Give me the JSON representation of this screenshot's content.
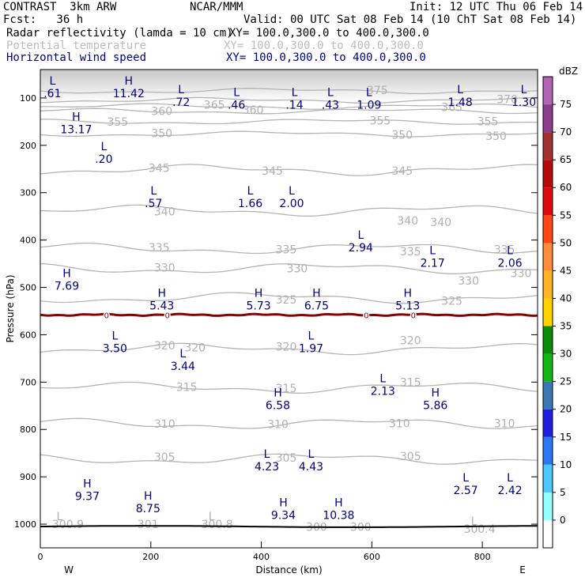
{
  "header": {
    "title": "CONTRAST  3km ARW",
    "center": "NCAR/MMM",
    "init": "Init: 12 UTC Thu 06 Feb 14",
    "fcst": "Fcst:   36 h",
    "valid": "Valid: 00 UTC Sat 08 Feb 14 (10 ChT Sat 08 Feb 14)",
    "field1": "Radar reflectivity (lamda = 10 cm)",
    "field1_xy": "XY= 100.0,300.0 to 400.0,300.0",
    "field2": "Potential temperature",
    "field2_xy": "XY= 100.0,300.0 to 400.0,300.0",
    "field3": "Horizontal wind speed",
    "field3_xy": "XY= 100.0,300.0 to 400.0,300.0"
  },
  "chart_data": {
    "type": "cross-section",
    "xlabel": "Distance (km)",
    "ylabel": "Pressure (hPa)",
    "xlim": [
      0,
      900
    ],
    "ylim": [
      1050,
      40
    ],
    "x_ticks": [
      0,
      200,
      400,
      600,
      800
    ],
    "y_ticks": [
      100,
      200,
      300,
      400,
      500,
      600,
      700,
      800,
      900,
      1000
    ],
    "left_end_label": "W",
    "right_end_label": "E",
    "colorbar": {
      "unit": "dBZ",
      "levels": [
        0,
        5,
        10,
        15,
        20,
        25,
        30,
        35,
        40,
        45,
        50,
        55,
        60,
        65,
        70,
        75
      ],
      "colors": [
        "#96ffff",
        "#4ec8fc",
        "#2a78f0",
        "#1e1edc",
        "#3c78b4",
        "#14b414",
        "#0a8c0a",
        "#ffd200",
        "#ffb428",
        "#ff8c3c",
        "#ff4614",
        "#dc0a0a",
        "#b40a0a",
        "#a03232",
        "#8c3c8c",
        "#b464b4"
      ]
    },
    "theta_contours": [
      {
        "value": 375,
        "p": 85,
        "labels": [
          {
            "text": "375",
            "x": 610,
            "p": 83
          }
        ]
      },
      {
        "value": 370,
        "p": 105,
        "labels": [
          {
            "text": "370",
            "x": 845,
            "p": 103
          }
        ]
      },
      {
        "value": 365,
        "p": 118,
        "labels": [
          {
            "text": "365",
            "x": 315,
            "p": 114
          },
          {
            "text": "365",
            "x": 745,
            "p": 119
          }
        ]
      },
      {
        "value": 360,
        "p": 128,
        "labels": [
          {
            "text": "360",
            "x": 220,
            "p": 128
          },
          {
            "text": "360",
            "x": 385,
            "p": 125
          }
        ]
      },
      {
        "value": 355,
        "p": 150,
        "labels": [
          {
            "text": "355",
            "x": 140,
            "p": 150
          },
          {
            "text": "355",
            "x": 615,
            "p": 148
          },
          {
            "text": "355",
            "x": 810,
            "p": 149
          }
        ]
      },
      {
        "value": 350,
        "p": 176,
        "labels": [
          {
            "text": "350",
            "x": 220,
            "p": 174
          },
          {
            "text": "350",
            "x": 655,
            "p": 178
          },
          {
            "text": "350",
            "x": 825,
            "p": 180
          }
        ]
      },
      {
        "value": 345,
        "p": 252,
        "labels": [
          {
            "text": "345",
            "x": 215,
            "p": 248
          },
          {
            "text": "345",
            "x": 420,
            "p": 254
          },
          {
            "text": "345",
            "x": 655,
            "p": 254
          }
        ]
      },
      {
        "value": 340,
        "p": 338,
        "labels": [
          {
            "text": "340",
            "x": 225,
            "p": 340
          },
          {
            "text": "340",
            "x": 665,
            "p": 359
          },
          {
            "text": "340",
            "x": 725,
            "p": 362
          }
        ]
      },
      {
        "value": 335,
        "p": 418,
        "labels": [
          {
            "text": "335",
            "x": 215,
            "p": 416
          },
          {
            "text": "335",
            "x": 445,
            "p": 420
          },
          {
            "text": "335",
            "x": 670,
            "p": 424
          },
          {
            "text": "335",
            "x": 840,
            "p": 420
          }
        ]
      },
      {
        "value": 330,
        "p": 460,
        "labels": [
          {
            "text": "330",
            "x": 225,
            "p": 458
          },
          {
            "text": "330",
            "x": 465,
            "p": 460
          },
          {
            "text": "330",
            "x": 775,
            "p": 486
          },
          {
            "text": "330",
            "x": 870,
            "p": 470
          }
        ]
      },
      {
        "value": 325,
        "p": 522,
        "labels": [
          {
            "text": "325",
            "x": 445,
            "p": 526
          },
          {
            "text": "325",
            "x": 745,
            "p": 528
          }
        ]
      },
      {
        "value": 320,
        "p": 630,
        "labels": [
          {
            "text": "320",
            "x": 225,
            "p": 623
          },
          {
            "text": "320",
            "x": 280,
            "p": 627
          },
          {
            "text": "320",
            "x": 445,
            "p": 625
          },
          {
            "text": "320",
            "x": 670,
            "p": 612
          }
        ]
      },
      {
        "value": 315,
        "p": 712,
        "labels": [
          {
            "text": "315",
            "x": 265,
            "p": 710
          },
          {
            "text": "315",
            "x": 445,
            "p": 713
          },
          {
            "text": "315",
            "x": 670,
            "p": 700
          }
        ]
      },
      {
        "value": 310,
        "p": 788,
        "labels": [
          {
            "text": "310",
            "x": 225,
            "p": 788
          },
          {
            "text": "310",
            "x": 430,
            "p": 789
          },
          {
            "text": "310",
            "x": 650,
            "p": 787
          },
          {
            "text": "310",
            "x": 840,
            "p": 787
          }
        ]
      },
      {
        "value": 305,
        "p": 862,
        "labels": [
          {
            "text": "305",
            "x": 225,
            "p": 858
          },
          {
            "text": "305",
            "x": 445,
            "p": 860
          },
          {
            "text": "305",
            "x": 670,
            "p": 856
          }
        ]
      }
    ],
    "surface_theta_labels": [
      {
        "text": "L",
        "x": 35,
        "p": 983
      },
      {
        "text": "300.9",
        "x": 50,
        "p": 1000
      },
      {
        "text": "301",
        "x": 195,
        "p": 1000
      },
      {
        "text": "L",
        "x": 310,
        "p": 983
      },
      {
        "text": "300.8",
        "x": 320,
        "p": 1000
      },
      {
        "text": "300",
        "x": 500,
        "p": 1006
      },
      {
        "text": "300",
        "x": 580,
        "p": 1006
      },
      {
        "text": "L",
        "x": 785,
        "p": 993
      },
      {
        "text": "300.4",
        "x": 795,
        "p": 1010
      }
    ],
    "zero_isotherm": {
      "p": 558,
      "label": "0",
      "label_x": [
        120,
        230,
        590,
        675
      ]
    },
    "surface_p": 1005,
    "wind_extrema": [
      {
        "type": "L",
        "value": ".61",
        "x": 22,
        "p": 72
      },
      {
        "type": "H",
        "value": "11.42",
        "x": 160,
        "p": 72
      },
      {
        "type": "L",
        "value": ".72",
        "x": 255,
        "p": 90
      },
      {
        "type": "L",
        "value": ".46",
        "x": 355,
        "p": 96
      },
      {
        "type": "L",
        "value": ".14",
        "x": 460,
        "p": 96
      },
      {
        "type": "L",
        "value": ".43",
        "x": 525,
        "p": 96
      },
      {
        "type": "L",
        "value": "1.09",
        "x": 595,
        "p": 96
      },
      {
        "type": "L",
        "value": "1.48",
        "x": 760,
        "p": 90
      },
      {
        "type": "L",
        "value": "1.30",
        "x": 875,
        "p": 90
      },
      {
        "type": "H",
        "value": "13.17",
        "x": 65,
        "p": 148
      },
      {
        "type": "L",
        "value": ".20",
        "x": 115,
        "p": 210
      },
      {
        "type": "L",
        "value": ".57",
        "x": 205,
        "p": 304
      },
      {
        "type": "L",
        "value": "1.66",
        "x": 380,
        "p": 304
      },
      {
        "type": "L",
        "value": "2.00",
        "x": 455,
        "p": 304
      },
      {
        "type": "L",
        "value": "2.94",
        "x": 580,
        "p": 397
      },
      {
        "type": "L",
        "value": "2.17",
        "x": 710,
        "p": 430
      },
      {
        "type": "L",
        "value": "2.06",
        "x": 850,
        "p": 430
      },
      {
        "type": "H",
        "value": "7.69",
        "x": 48,
        "p": 478
      },
      {
        "type": "H",
        "value": "5.43",
        "x": 220,
        "p": 520
      },
      {
        "type": "H",
        "value": "5.73",
        "x": 395,
        "p": 520
      },
      {
        "type": "H",
        "value": "6.75",
        "x": 500,
        "p": 520
      },
      {
        "type": "H",
        "value": "5.13",
        "x": 665,
        "p": 520
      },
      {
        "type": "L",
        "value": "3.50",
        "x": 135,
        "p": 610
      },
      {
        "type": "L",
        "value": "1.97",
        "x": 490,
        "p": 610
      },
      {
        "type": "L",
        "value": "3.44",
        "x": 258,
        "p": 648
      },
      {
        "type": "L",
        "value": "2.13",
        "x": 620,
        "p": 700
      },
      {
        "type": "H",
        "value": "6.58",
        "x": 430,
        "p": 730
      },
      {
        "type": "H",
        "value": "5.86",
        "x": 715,
        "p": 730
      },
      {
        "type": "L",
        "value": "4.23",
        "x": 410,
        "p": 860
      },
      {
        "type": "L",
        "value": "4.43",
        "x": 490,
        "p": 860
      },
      {
        "type": "L",
        "value": "2.57",
        "x": 770,
        "p": 910
      },
      {
        "type": "L",
        "value": "2.42",
        "x": 850,
        "p": 910
      },
      {
        "type": "H",
        "value": "9.37",
        "x": 85,
        "p": 922
      },
      {
        "type": "H",
        "value": "8.75",
        "x": 195,
        "p": 948
      },
      {
        "type": "H",
        "value": "9.34",
        "x": 440,
        "p": 962
      },
      {
        "type": "H",
        "value": "10.38",
        "x": 540,
        "p": 962
      }
    ]
  }
}
